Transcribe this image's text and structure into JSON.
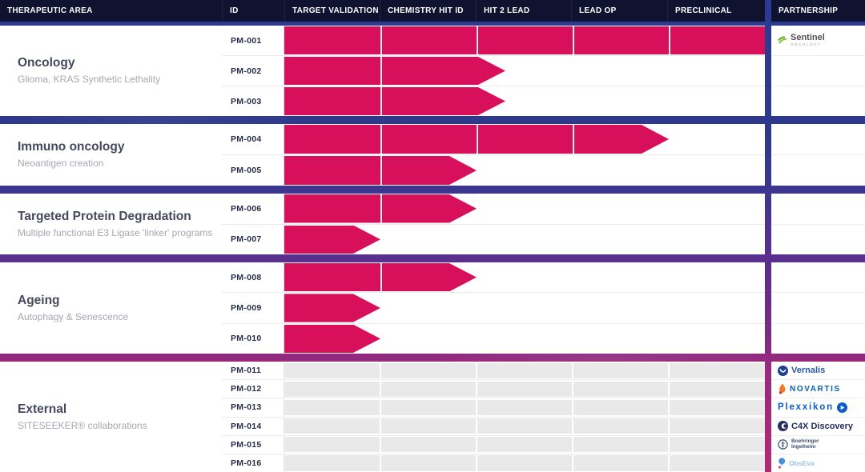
{
  "header": {
    "columns": [
      "THERAPEUTIC AREA",
      "ID",
      "TARGET VALIDATION",
      "CHEMISTRY HIT ID",
      "HIT 2 LEAD",
      "LEAD OP",
      "PRECLINICAL",
      "PARTNERSHIP"
    ]
  },
  "colors": {
    "bar": "#d8105c",
    "header_bg": "#0f1330",
    "band_top_blue": "#2c3a93",
    "band_bottom_magenta": "#b12b74",
    "external_cell": "#e9e9e9"
  },
  "partners": {
    "sentinel": {
      "name": "Sentinel Oncology",
      "label": "Sentinel",
      "sub": "ONCOLOGY"
    },
    "vernalis": {
      "name": "Vernalis",
      "label": "Vernalis"
    },
    "novartis": {
      "name": "Novartis",
      "label": "NOVARTIS"
    },
    "plexxikon": {
      "name": "Plexxikon",
      "label": "Plexxikon"
    },
    "c4x": {
      "name": "C4X Discovery",
      "label": "C4X Discovery"
    },
    "boehringer": {
      "name": "Boehringer Ingelheim",
      "label_line1": "Boehringer",
      "label_line2": "Ingelheim"
    },
    "obseva": {
      "name": "ObsEva",
      "label": "ObsEva"
    }
  },
  "chart_data": {
    "type": "bar",
    "stages": [
      "TARGET VALIDATION",
      "CHEMISTRY HIT ID",
      "HIT 2 LEAD",
      "LEAD OP",
      "PRECLINICAL"
    ],
    "stage_axis": {
      "min": 0,
      "max": 5,
      "units": "pipeline stages completed"
    },
    "sections": [
      {
        "name": "Oncology",
        "subtitle": "Glioma, KRAS Synthetic Lethality",
        "height": 113,
        "programs": [
          {
            "id": "PM-001",
            "progress_stages": 5.0,
            "arrow": false,
            "partner": "sentinel"
          },
          {
            "id": "PM-002",
            "progress_stages": 2.3,
            "arrow": true
          },
          {
            "id": "PM-003",
            "progress_stages": 2.3,
            "arrow": true
          }
        ]
      },
      {
        "name": "Immuno oncology",
        "subtitle": "Neoantigen creation",
        "height": 77,
        "programs": [
          {
            "id": "PM-004",
            "progress_stages": 4.0,
            "arrow": true
          },
          {
            "id": "PM-005",
            "progress_stages": 2.0,
            "arrow": true
          }
        ]
      },
      {
        "name": "Targeted Protein Degradation",
        "subtitle": "Multiple functional E3 Ligase 'linker' programs",
        "height": 76,
        "programs": [
          {
            "id": "PM-006",
            "progress_stages": 2.0,
            "arrow": true
          },
          {
            "id": "PM-007",
            "progress_stages": 1.0,
            "arrow": true
          }
        ]
      },
      {
        "name": "Ageing",
        "subtitle": "Autophagy & Senescence",
        "height": 114,
        "programs": [
          {
            "id": "PM-008",
            "progress_stages": 2.0,
            "arrow": true
          },
          {
            "id": "PM-009",
            "progress_stages": 1.0,
            "arrow": true
          },
          {
            "id": "PM-010",
            "progress_stages": 1.0,
            "arrow": true
          }
        ]
      },
      {
        "name": "External",
        "subtitle": "SITESEEKER® collaborations",
        "height": 138,
        "external": true,
        "programs": [
          {
            "id": "PM-011",
            "external": true,
            "partner": "vernalis"
          },
          {
            "id": "PM-012",
            "external": true,
            "partner": "novartis"
          },
          {
            "id": "PM-013",
            "external": true,
            "partner": "plexxikon"
          },
          {
            "id": "PM-014",
            "external": true,
            "partner": "c4x"
          },
          {
            "id": "PM-015",
            "external": true,
            "partner": "boehringer"
          },
          {
            "id": "PM-016",
            "external": true,
            "partner": "obseva"
          }
        ]
      }
    ]
  }
}
